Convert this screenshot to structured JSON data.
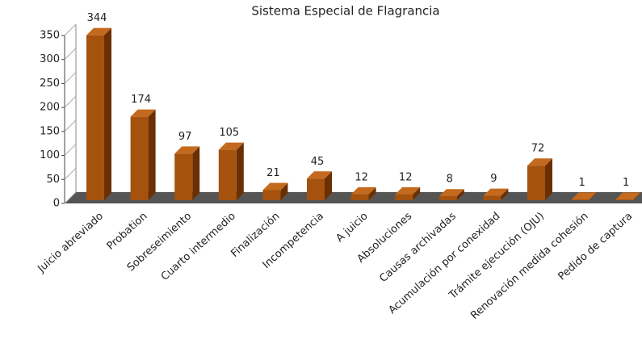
{
  "chart_data": {
    "type": "bar",
    "title": "Sistema Especial de Flagrancia",
    "categories": [
      "Juicio abreviado",
      "Probation",
      "Sobreseimiento",
      "Cuarto intermedio",
      "Finalización",
      "Incompetencia",
      "A juicio",
      "Absoluciones",
      "Causas archivadas",
      "Acumulación por conexidad",
      "Trámite ejecución (OJU)",
      "Renovación medida cohesión",
      "Pedido de captura"
    ],
    "values": [
      344,
      174,
      97,
      105,
      21,
      45,
      12,
      12,
      8,
      9,
      72,
      1,
      1
    ],
    "color": "#a4520e",
    "ylim": [
      0,
      350
    ],
    "yticks": [
      0,
      50,
      100,
      150,
      200,
      250,
      300,
      350
    ]
  }
}
